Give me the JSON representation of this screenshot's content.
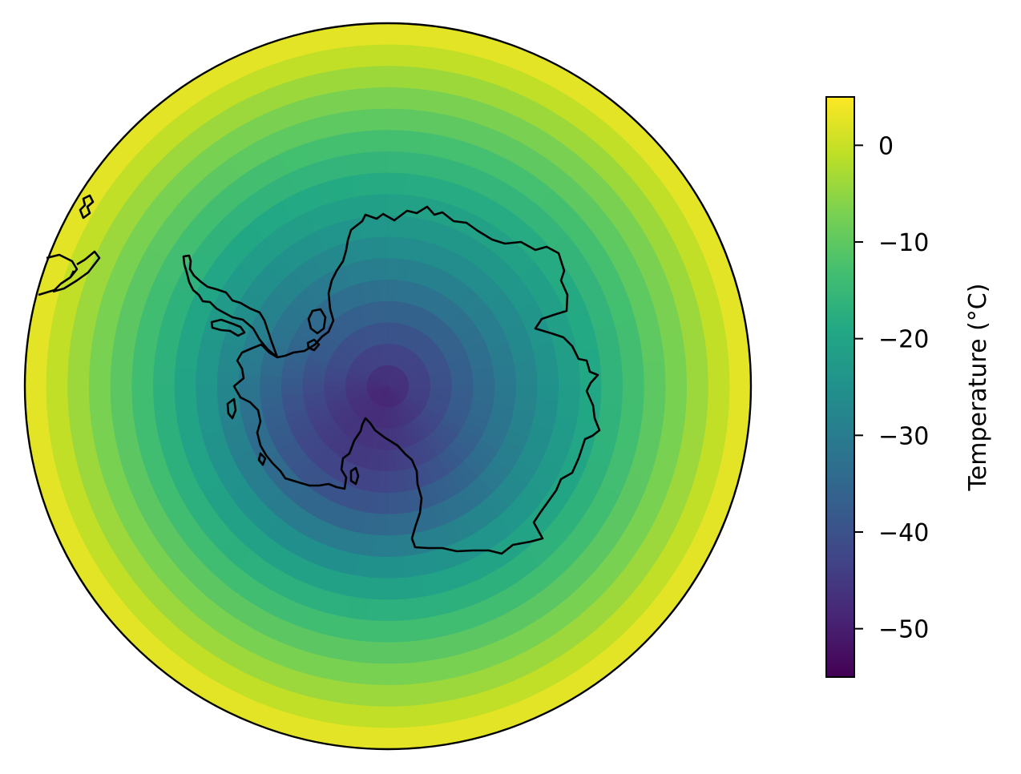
{
  "map": {
    "projection": "south-polar-stereographic",
    "background": "#ffffff",
    "frame_color": "#000000",
    "coastline_color": "#000000",
    "colormap": "viridis",
    "field": {
      "pole_temperature": -48,
      "edge_temperature": 4,
      "cold_sector_bearing_deg": 115,
      "cold_sector_depth": 8
    }
  },
  "colorbar": {
    "label": "Temperature ($^\\circ$C)",
    "label_rendered": "Temperature (°C)",
    "vmin": -55,
    "vmax": 5,
    "ticks": [
      0,
      -10,
      -20,
      -30,
      -40,
      -50
    ],
    "tick_labels": [
      "0",
      "−10",
      "−20",
      "−30",
      "−40",
      "−50"
    ]
  }
}
